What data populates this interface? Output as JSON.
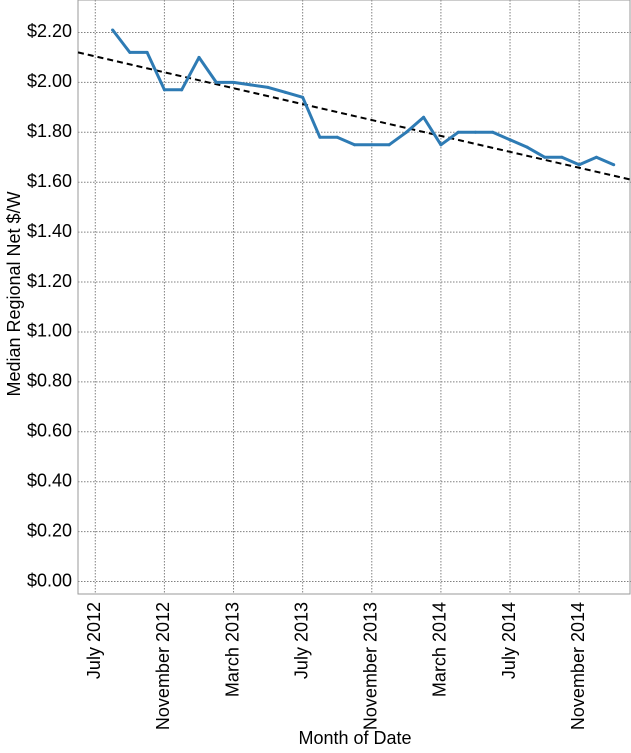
{
  "chart_data": {
    "type": "line",
    "xlabel": "Month of Date",
    "ylabel": "Median Regional Net $/W",
    "y_ticks": [
      "$0.00",
      "$0.20",
      "$0.40",
      "$0.60",
      "$0.80",
      "$1.00",
      "$1.20",
      "$1.40",
      "$1.60",
      "$1.80",
      "$2.00",
      "$2.20"
    ],
    "y_tick_values": [
      0,
      0.2,
      0.4,
      0.6,
      0.8,
      1.0,
      1.2,
      1.4,
      1.6,
      1.8,
      2.0,
      2.2
    ],
    "x_ticks": [
      "July 2012",
      "November 2012",
      "March 2013",
      "July 2013",
      "November 2013",
      "March 2014",
      "July 2014",
      "November 2014"
    ],
    "x_tick_dates": [
      "2012-07",
      "2012-11",
      "2013-03",
      "2013-07",
      "2013-11",
      "2014-03",
      "2014-07",
      "2014-11"
    ],
    "xlim": [
      "2012-06",
      "2015-02"
    ],
    "ylim": [
      -0.05,
      2.33
    ],
    "grid": true,
    "series": [
      {
        "color": "#2e7bb4",
        "x": [
          "2012-08",
          "2012-09",
          "2012-10",
          "2012-11",
          "2012-12",
          "2013-01",
          "2013-02",
          "2013-03",
          "2013-04",
          "2013-05",
          "2013-06",
          "2013-07",
          "2013-08",
          "2013-09",
          "2013-10",
          "2013-11",
          "2013-12",
          "2014-01",
          "2014-02",
          "2014-03",
          "2014-04",
          "2014-05",
          "2014-06",
          "2014-07",
          "2014-08",
          "2014-09",
          "2014-10",
          "2014-11",
          "2014-12",
          "2015-01"
        ],
        "values": [
          2.21,
          2.12,
          2.12,
          1.97,
          1.97,
          2.1,
          2.0,
          2.0,
          1.99,
          1.98,
          1.96,
          1.94,
          1.78,
          1.78,
          1.75,
          1.75,
          1.75,
          1.8,
          1.86,
          1.75,
          1.8,
          1.8,
          1.8,
          1.77,
          1.74,
          1.7,
          1.7,
          1.67,
          1.7,
          1.67
        ]
      }
    ],
    "trend_line": {
      "style": "dashed",
      "color": "#000000",
      "x": [
        "2012-06",
        "2015-02"
      ],
      "values": [
        2.12,
        1.61
      ]
    }
  }
}
